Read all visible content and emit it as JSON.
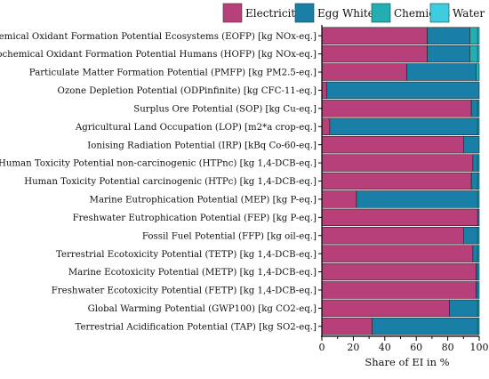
{
  "chart_data": {
    "type": "bar",
    "orientation": "horizontal",
    "stacked": true,
    "xlabel": "Share of EI in %",
    "ylabel": "",
    "xlim": [
      0,
      100
    ],
    "xticks": [
      "0",
      "20",
      "40",
      "60",
      "80",
      "100"
    ],
    "grid": false,
    "legend": {
      "position": "top-right",
      "entries": [
        "Electricity",
        "Egg White",
        "Chemicals",
        "Water"
      ]
    },
    "categories": [
      "Photochemical Oxidant Formation Potential Ecosystems (EOFP) [kg NOx-eq.]",
      "Photochemical Oxidant Formation Potential Humans (HOFP) [kg NOx-eq.]",
      "Particulate Matter Formation Potential (PMFP) [kg PM2.5-eq.]",
      "Ozone Depletion Potential (ODPinfinite) [kg CFC-11-eq.]",
      "Surplus Ore Potential (SOP) [kg Cu-eq.]",
      "Agricultural Land Occupation (LOP) [m2*a crop-eq.]",
      "Ionising Radiation Potential (IRP) [kBq Co-60-eq.]",
      "Human Toxicity Potential non-carcinogenic (HTPnc) [kg 1,4-DCB-eq.]",
      "Human Toxicity Potential carcinogenic (HTPc) [kg 1,4-DCB-eq.]",
      "Marine Eutrophication Potential (MEP) [kg P-eq.]",
      "Freshwater Eutrophication Potential (FEP) [kg P-eq.]",
      "Fossil Fuel Potential (FFP) [kg oil-eq.]",
      "Terrestrial Ecotoxicity Potential (TETP) [kg 1,4-DCB-eq.]",
      "Marine Ecotoxicity Potential (METP) [kg 1,4-DCB-eq.]",
      "Freshwater Ecotoxicity Potential (FETP) [kg 1,4-DCB-eq.]",
      "Global Warming Potential (GWP100) [kg CO2-eq.]",
      "Terrestrial Acidification Potential (TAP) [kg SO2-eq.]"
    ],
    "series": [
      {
        "name": "Electricity",
        "color": "#b8407a",
        "values": [
          67,
          67,
          54,
          3,
          95,
          5,
          90,
          96,
          95,
          22,
          99,
          90,
          96,
          98,
          98,
          81,
          32
        ]
      },
      {
        "name": "Egg White",
        "color": "#1a7fa6",
        "values": [
          27,
          27,
          44,
          97,
          4,
          94,
          10,
          3,
          4,
          77,
          1,
          9,
          3,
          1,
          1,
          18,
          67
        ]
      },
      {
        "name": "Chemicals",
        "color": "#22aeb3",
        "values": [
          5,
          5,
          2,
          0,
          1,
          1,
          0,
          1,
          1,
          1,
          0,
          1,
          1,
          1,
          1,
          1,
          1
        ]
      },
      {
        "name": "Water",
        "color": "#3dcce0",
        "values": [
          1,
          1,
          0,
          0,
          0,
          0,
          0,
          0,
          0,
          0,
          0,
          0,
          0,
          0,
          0,
          0,
          0
        ]
      }
    ]
  }
}
